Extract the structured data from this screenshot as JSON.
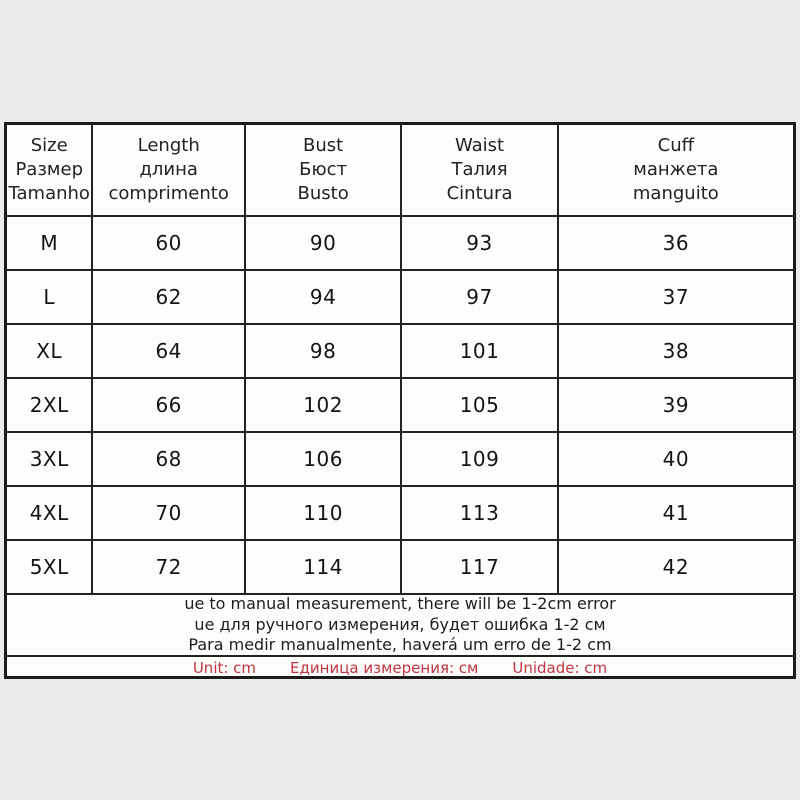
{
  "size_chart": {
    "headers": [
      {
        "lines": [
          "Size",
          "Размер",
          "Tamanho"
        ]
      },
      {
        "lines": [
          "Length",
          "длина",
          "comprimento"
        ]
      },
      {
        "lines": [
          "Bust",
          "Бюст",
          "Busto"
        ]
      },
      {
        "lines": [
          "Waist",
          "Талия",
          "Cintura"
        ]
      },
      {
        "lines": [
          "Cuff",
          "манжета",
          "manguito"
        ]
      }
    ],
    "rows": [
      {
        "size": "M",
        "length": "60",
        "bust": "90",
        "waist": "93",
        "cuff": "36"
      },
      {
        "size": "L",
        "length": "62",
        "bust": "94",
        "waist": "97",
        "cuff": "37"
      },
      {
        "size": "XL",
        "length": "64",
        "bust": "98",
        "waist": "101",
        "cuff": "38"
      },
      {
        "size": "2XL",
        "length": "66",
        "bust": "102",
        "waist": "105",
        "cuff": "39"
      },
      {
        "size": "3XL",
        "length": "68",
        "bust": "106",
        "waist": "109",
        "cuff": "40"
      },
      {
        "size": "4XL",
        "length": "70",
        "bust": "110",
        "waist": "113",
        "cuff": "41"
      },
      {
        "size": "5XL",
        "length": "72",
        "bust": "114",
        "waist": "117",
        "cuff": "42"
      }
    ],
    "notes": [
      "ue to manual measurement, there will be 1-2cm error",
      "ue для ручного измерения, будет ошибка 1-2 см",
      "Para medir manualmente, haverá um erro de 1-2 cm"
    ],
    "unit_row": [
      "Unit:  cm",
      "Единица измерения:  см",
      "Unidade:  cm"
    ]
  },
  "colors": {
    "unit_text": "#c13440",
    "border": "#1b1b1b",
    "table_background": "#fdfdfc",
    "page_background": "#ebebe9",
    "text": "#1d1d1d"
  }
}
